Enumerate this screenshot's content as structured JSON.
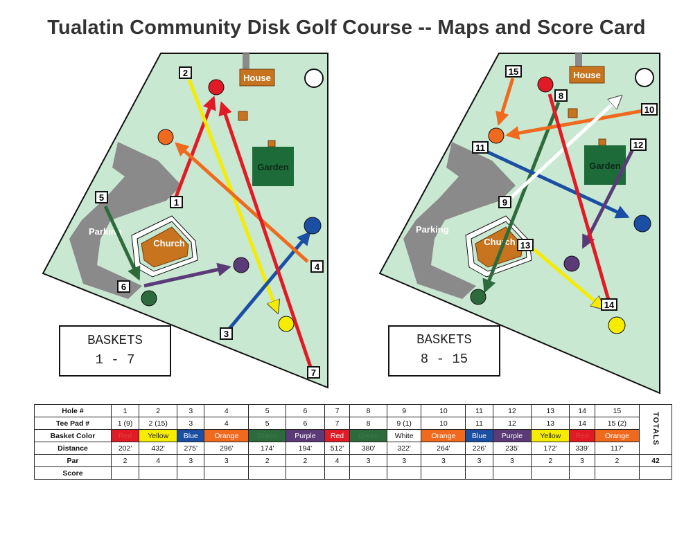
{
  "title": "Tualatin Community Disk Golf Course -- Maps and Score Card",
  "maps": [
    {
      "labels": {
        "house": "House",
        "garden": "Garden",
        "parking": "Parking",
        "church": "Church"
      },
      "baskets_box": {
        "line1": "BASKETS",
        "line2": "1 - 7"
      },
      "tees": [
        "2",
        "5",
        "1",
        "6",
        "4",
        "3",
        "7"
      ]
    },
    {
      "labels": {
        "house": "House",
        "garden": "Garden",
        "parking": "Parking",
        "church": "Church"
      },
      "baskets_box": {
        "line1": "BASKETS",
        "line2": "8 - 15"
      },
      "tees": [
        "15",
        "8",
        "10",
        "11",
        "12",
        "9",
        "13",
        "14"
      ]
    }
  ],
  "colors": {
    "red": "#e11b25",
    "yellow": "#f5ec00",
    "blue": "#1b4fa3",
    "orange": "#ef6a1e",
    "green": "#2e6b3c",
    "purple": "#5b3a78",
    "white": "#ffffff",
    "course": "#c9e8d2",
    "parking": "#8a8a8a",
    "church": "#c8731e",
    "garden": "#1e6b3a"
  },
  "scorecard": {
    "row_labels": [
      "Hole #",
      "Tee Pad #",
      "Basket Color",
      "Distance",
      "Par",
      "Score"
    ],
    "holes": [
      "1",
      "2",
      "3",
      "4",
      "5",
      "6",
      "7",
      "8",
      "9",
      "10",
      "11",
      "12",
      "13",
      "14",
      "15"
    ],
    "tee_pads": [
      "1 (9)",
      "2 (15)",
      "3",
      "4",
      "5",
      "6",
      "7",
      "8",
      "9 (1)",
      "10",
      "11",
      "12",
      "13",
      "14",
      "15 (2)"
    ],
    "basket_colors": [
      {
        "label": "Red",
        "bg": "#e11b25",
        "fg": "#e04040"
      },
      {
        "label": "Yellow",
        "bg": "#f5ec00",
        "fg": "#222222"
      },
      {
        "label": "Blue",
        "bg": "#1b4fa3",
        "fg": "#ffffff"
      },
      {
        "label": "Orange",
        "bg": "#ef6a1e",
        "fg": "#ffffff"
      },
      {
        "label": "Green",
        "bg": "#2e6b3c",
        "fg": "#3f7a4c"
      },
      {
        "label": "Purple",
        "bg": "#5b3a78",
        "fg": "#ffffff"
      },
      {
        "label": "Red",
        "bg": "#e11b25",
        "fg": "#ffffff"
      },
      {
        "label": "Green",
        "bg": "#2e6b3c",
        "fg": "#3f7a4c"
      },
      {
        "label": "White",
        "bg": "#ffffff",
        "fg": "#111111"
      },
      {
        "label": "Orange",
        "bg": "#ef6a1e",
        "fg": "#ffffff"
      },
      {
        "label": "Blue",
        "bg": "#1b4fa3",
        "fg": "#ffffff"
      },
      {
        "label": "Purple",
        "bg": "#5b3a78",
        "fg": "#ffffff"
      },
      {
        "label": "Yellow",
        "bg": "#f5ec00",
        "fg": "#222222"
      },
      {
        "label": "Red",
        "bg": "#e11b25",
        "fg": "#e04040"
      },
      {
        "label": "Orange",
        "bg": "#ef6a1e",
        "fg": "#ffffff"
      }
    ],
    "distances": [
      "202'",
      "432'",
      "275'",
      "296'",
      "174'",
      "194'",
      "512'",
      "380'",
      "322'",
      "264'",
      "226'",
      "235'",
      "172'",
      "339'",
      "117'"
    ],
    "pars": [
      "2",
      "4",
      "3",
      "3",
      "2",
      "2",
      "4",
      "3",
      "3",
      "3",
      "3",
      "3",
      "2",
      "3",
      "2"
    ],
    "totals_label": "TOTALS",
    "par_total": "42"
  }
}
